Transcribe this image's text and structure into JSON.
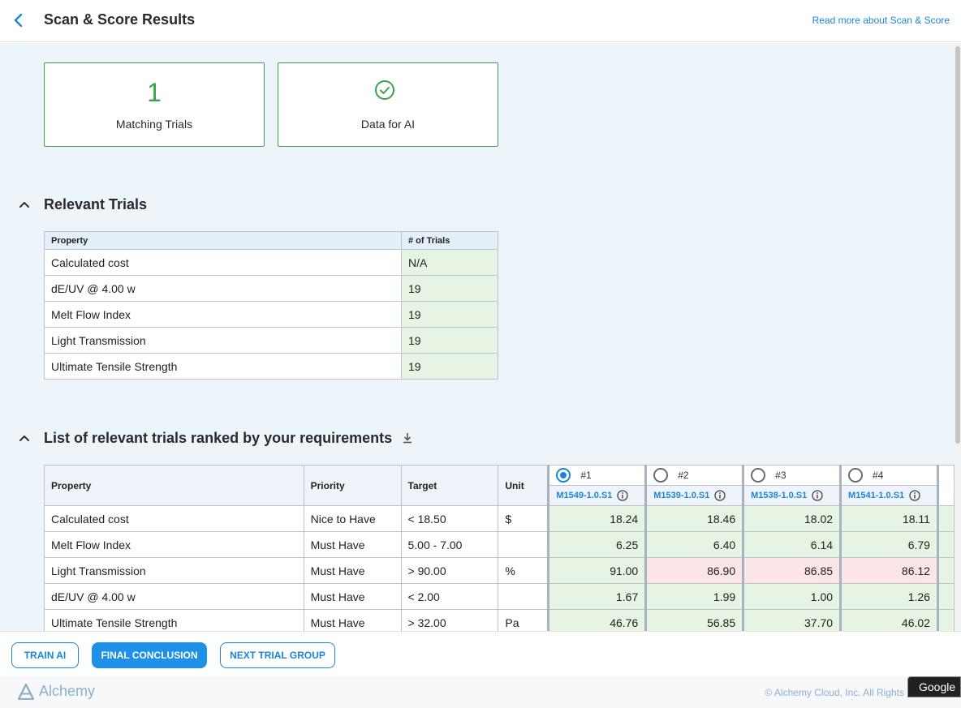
{
  "header": {
    "title": "Scan & Score Results",
    "read_more": "Read more about Scan & Score"
  },
  "summary": {
    "matching_trials_value": "1",
    "matching_trials_label": "Matching Trials",
    "data_for_ai_label": "Data for AI"
  },
  "relevant_trials": {
    "title": "Relevant Trials",
    "columns": [
      "Property",
      "# of Trials"
    ],
    "rows": [
      {
        "property": "Calculated cost",
        "count": "N/A"
      },
      {
        "property": "dE/UV @ 4.00 w",
        "count": "19"
      },
      {
        "property": "Melt Flow Index",
        "count": "19"
      },
      {
        "property": "Light Transmission",
        "count": "19"
      },
      {
        "property": "Ultimate Tensile Strength",
        "count": "19"
      }
    ]
  },
  "ranked": {
    "title": "List of relevant trials ranked by your requirements",
    "columns": [
      "Property",
      "Priority",
      "Target",
      "Unit"
    ],
    "trials": [
      {
        "rank": "#1",
        "id": "M1549-1.0.S1",
        "selected": true
      },
      {
        "rank": "#2",
        "id": "M1539-1.0.S1",
        "selected": false
      },
      {
        "rank": "#3",
        "id": "M1538-1.0.S1",
        "selected": false
      },
      {
        "rank": "#4",
        "id": "M1541-1.0.S1",
        "selected": false
      }
    ],
    "rows": [
      {
        "property": "Calculated cost",
        "priority": "Nice to Have",
        "target": "< 18.50",
        "unit": "$",
        "values": [
          "18.24",
          "18.46",
          "18.02",
          "18.11"
        ],
        "pass": [
          true,
          true,
          true,
          true
        ]
      },
      {
        "property": "Melt Flow Index",
        "priority": "Must Have",
        "target": "5.00 - 7.00",
        "unit": "",
        "values": [
          "6.25",
          "6.40",
          "6.14",
          "6.79"
        ],
        "pass": [
          true,
          true,
          true,
          true
        ]
      },
      {
        "property": "Light Transmission",
        "priority": "Must Have",
        "target": "> 90.00",
        "unit": "%",
        "values": [
          "91.00",
          "86.90",
          "86.85",
          "86.12"
        ],
        "pass": [
          true,
          false,
          false,
          false
        ]
      },
      {
        "property": "dE/UV @ 4.00 w",
        "priority": "Must Have",
        "target": "< 2.00",
        "unit": "",
        "values": [
          "1.67",
          "1.99",
          "1.00",
          "1.26"
        ],
        "pass": [
          true,
          true,
          true,
          true
        ]
      },
      {
        "property": "Ultimate Tensile Strength",
        "priority": "Must Have",
        "target": "> 32.00",
        "unit": "Pa",
        "values": [
          "46.76",
          "56.85",
          "37.70",
          "46.02"
        ],
        "pass": [
          true,
          true,
          true,
          true
        ]
      }
    ]
  },
  "actions": {
    "train_ai": "TRAIN AI",
    "final_conclusion": "FINAL CONCLUSION",
    "next_trial_group": "NEXT TRIAL GROUP"
  },
  "footer": {
    "logo_text": "Alchemy",
    "copyright": "© Alchemy Cloud, Inc. All Rights",
    "google_tag": "Google"
  },
  "colors": {
    "accent": "#1a86d9",
    "success": "#3aa34a",
    "pass_bg": "#e7f3e3",
    "fail_bg": "#fbe5e7",
    "page_bg": "#edf5fb"
  }
}
